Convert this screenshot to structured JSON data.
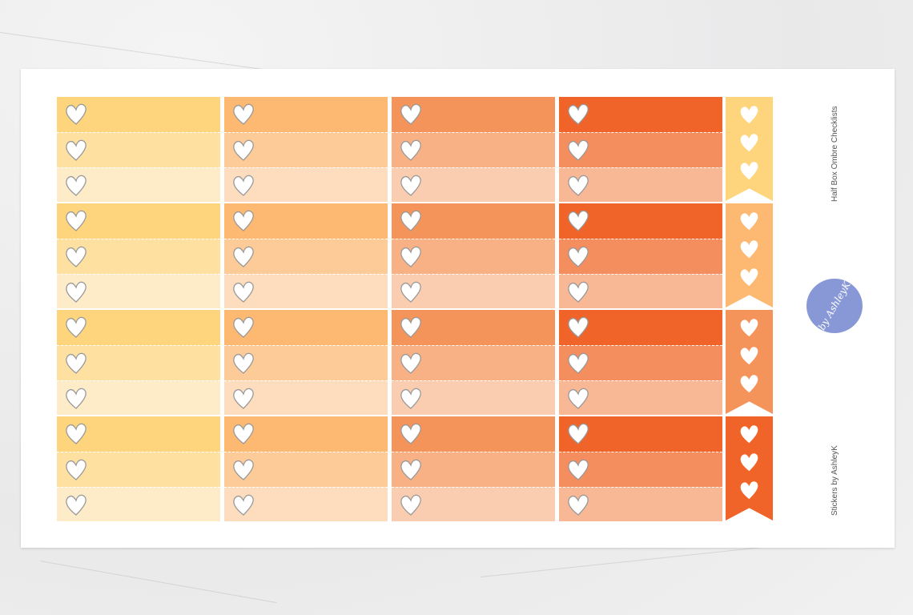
{
  "sheet": {
    "title": "Half Box Ombre Checklists",
    "brand": "Stickers by AshleyK",
    "logo_text": "by AshleyK",
    "logo_color": "#8898d6"
  },
  "icon": "heart-icon",
  "columns": [
    {
      "shades": [
        "#FED57C",
        "#FEE1A0",
        "#FEECC8"
      ]
    },
    {
      "shades": [
        "#FDB872",
        "#FDCB98",
        "#FDDDBE"
      ]
    },
    {
      "shades": [
        "#F5945A",
        "#F8B185",
        "#FACDB0"
      ]
    },
    {
      "shades": [
        "#F0642A",
        "#F48E5F",
        "#F8B896"
      ]
    }
  ],
  "flags": [
    "#FED57C",
    "#FDB872",
    "#F5945A",
    "#F0642A"
  ],
  "blocks_per_column": 4,
  "rows_per_block": 3
}
